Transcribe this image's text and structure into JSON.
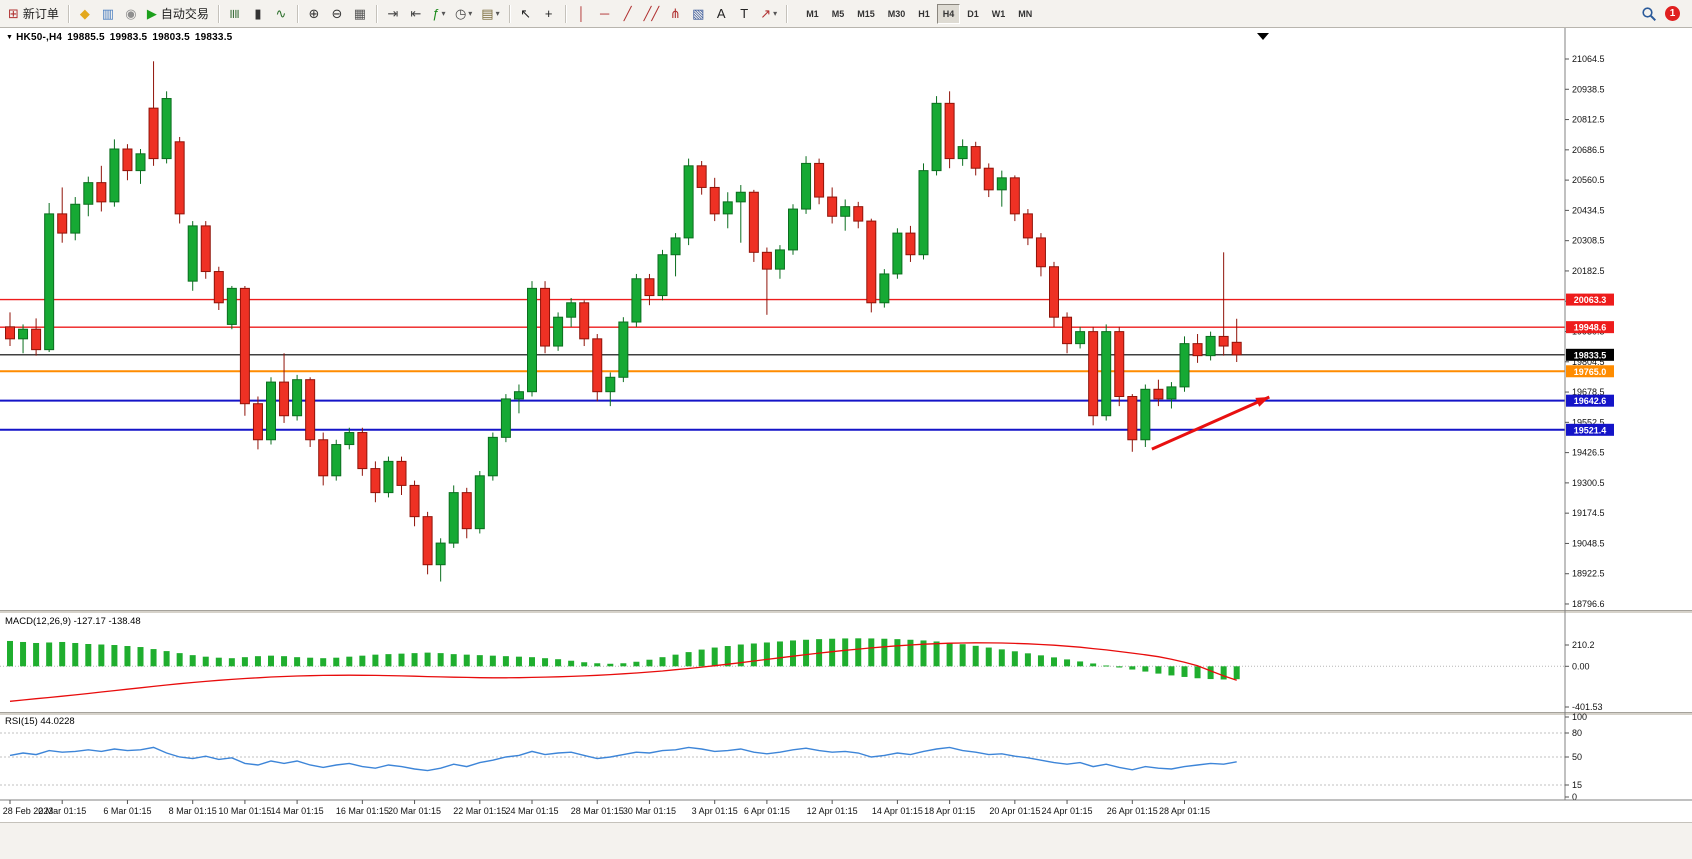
{
  "colors": {
    "candle_up": "#16a934",
    "candle_up_border": "#0b6e1f",
    "candle_down": "#ee3124",
    "candle_down_border": "#901309",
    "macd_histogram": "#1fae2e",
    "macd_signal": "#e80c0c",
    "rsi_line": "#3d85d8",
    "accent_red": "#ee1c1c",
    "accent_blue": "#1414c8",
    "accent_orange": "#ff8c00"
  },
  "toolbar": {
    "buttons": [
      {
        "name": "new-order",
        "glyph": "⊞",
        "color": "#b03030",
        "label": "新订单"
      },
      {
        "type": "sep"
      },
      {
        "name": "mql5-community",
        "glyph": "◆",
        "color": "#e3a81c"
      },
      {
        "name": "charts-gallery",
        "glyph": "▥",
        "color": "#4a7ec0"
      },
      {
        "name": "webinars",
        "glyph": "◉",
        "color": "#8f8f8f"
      },
      {
        "name": "auto-trading",
        "glyph": "▶",
        "color": "#1ca01c",
        "label": "自动交易"
      },
      {
        "type": "sep"
      },
      {
        "name": "bar-chart",
        "glyph": "≣",
        "rotate": true,
        "color": "#3a6e3a"
      },
      {
        "name": "candlestick-chart",
        "glyph": "▮",
        "color": "#333333"
      },
      {
        "name": "line-chart",
        "glyph": "∿",
        "color": "#2a6e2a"
      },
      {
        "type": "sep"
      },
      {
        "name": "zoom-in",
        "glyph": "⊕",
        "color": "#333333"
      },
      {
        "name": "zoom-out",
        "glyph": "⊖",
        "color": "#333333"
      },
      {
        "name": "tile-windows",
        "glyph": "▦",
        "color": "#555555"
      },
      {
        "type": "sep"
      },
      {
        "name": "auto-scroll",
        "glyph": "⇥",
        "color": "#444444"
      },
      {
        "name": "chart-shift",
        "glyph": "⇤",
        "color": "#444444"
      },
      {
        "name": "indicators",
        "glyph": "ƒ",
        "color": "#1a8a1a",
        "dropdown": true
      },
      {
        "name": "periods",
        "glyph": "◷",
        "color": "#444444",
        "dropdown": true
      },
      {
        "name": "templates",
        "glyph": "▤",
        "color": "#7a6a3a",
        "dropdown": true
      },
      {
        "type": "sep"
      },
      {
        "name": "cursor",
        "glyph": "↖",
        "color": "#222222"
      },
      {
        "name": "crosshair",
        "glyph": "+",
        "color": "#222222"
      },
      {
        "type": "sep"
      },
      {
        "name": "vertical-line",
        "glyph": "│",
        "color": "#b03030"
      },
      {
        "name": "horizontal-line",
        "glyph": "─",
        "color": "#b03030"
      },
      {
        "name": "trendline",
        "glyph": "╱",
        "color": "#b03030"
      },
      {
        "name": "equidistant-channel",
        "glyph": "╱╱",
        "color": "#b03030"
      },
      {
        "name": "fibonacci",
        "glyph": "⋔",
        "color": "#b03030"
      },
      {
        "name": "shapes",
        "glyph": "▧",
        "color": "#3a5a9a"
      },
      {
        "name": "text",
        "glyph": "A",
        "color": "#222222"
      },
      {
        "name": "text-label",
        "glyph": "T",
        "color": "#222222"
      },
      {
        "name": "arrows",
        "glyph": "↗",
        "color": "#b03030",
        "dropdown": true
      },
      {
        "type": "sep"
      }
    ],
    "timeframes": [
      "M1",
      "M5",
      "M15",
      "M30",
      "H1",
      "H4",
      "D1",
      "W1",
      "MN"
    ],
    "active_timeframe": "H4",
    "notification_count": "1"
  },
  "header": {
    "collapse_icon": "▼",
    "symbol": "HK50-,H4",
    "open": "19885.5",
    "high": "19983.5",
    "low": "19803.5",
    "close": "19833.5"
  },
  "panels": {
    "macd_label": "MACD(12,26,9) -127.17 -138.48",
    "rsi_label": "RSI(15) 44.0228"
  },
  "chart_data": [
    {
      "type": "candlestick",
      "symbol": "HK50-",
      "timeframe": "H4",
      "title": "HK50-,H4",
      "last_ohlc": {
        "open": 19885.5,
        "high": 19983.5,
        "low": 19803.5,
        "close": 19833.5
      },
      "ylim": [
        18760,
        21190
      ],
      "y_axis_ticks": [
        21064.5,
        20938.5,
        20812.5,
        20686.5,
        20560.5,
        20434.5,
        20308.5,
        20182.5,
        20056.5,
        19930.5,
        19804.5,
        19678.5,
        19552.5,
        19426.5,
        19300.5,
        19174.5,
        19048.5,
        18922.5,
        18796.6
      ],
      "hlines": [
        {
          "price": 20063.3,
          "color": "#ee1c1c",
          "width": 1.4
        },
        {
          "price": 19948.6,
          "color": "#ee1c1c",
          "width": 1.4
        },
        {
          "price": 19833.5,
          "color": "#000000",
          "width": 1.2
        },
        {
          "price": 19765.0,
          "color": "#ff8c00",
          "width": 2
        },
        {
          "price": 19642.6,
          "color": "#1414c8",
          "width": 2
        },
        {
          "price": 19521.4,
          "color": "#1414c8",
          "width": 2
        }
      ],
      "x_labels": [
        [
          "28 Feb 2023",
          0
        ],
        [
          "2 Mar 01:15",
          4
        ],
        [
          "6 Mar 01:15",
          9
        ],
        [
          "8 Mar 01:15",
          14
        ],
        [
          "10 Mar 01:15",
          18
        ],
        [
          "14 Mar 01:15",
          22
        ],
        [
          "16 Mar 01:15",
          27
        ],
        [
          "20 Mar 01:15",
          31
        ],
        [
          "22 Mar 01:15",
          36
        ],
        [
          "24 Mar 01:15",
          40
        ],
        [
          "28 Mar 01:15",
          45
        ],
        [
          "30 Mar 01:15",
          49
        ],
        [
          "3 Apr 01:15",
          54
        ],
        [
          "6 Apr 01:15",
          58
        ],
        [
          "12 Apr 01:15",
          63
        ],
        [
          "14 Apr 01:15",
          68
        ],
        [
          "18 Apr 01:15",
          72
        ],
        [
          "20 Apr 01:15",
          77
        ],
        [
          "24 Apr 01:15",
          81
        ],
        [
          "26 Apr 01:15",
          86
        ],
        [
          "28 Apr 01:15",
          90
        ]
      ],
      "candles": [
        [
          19950,
          20010,
          19870,
          19900
        ],
        [
          19900,
          19960,
          19840,
          19940
        ],
        [
          19940,
          19985,
          19830,
          19855
        ],
        [
          19855,
          20465,
          19845,
          20420
        ],
        [
          20420,
          20530,
          20300,
          20340
        ],
        [
          20340,
          20490,
          20310,
          20460
        ],
        [
          20460,
          20575,
          20410,
          20550
        ],
        [
          20550,
          20620,
          20430,
          20470
        ],
        [
          20470,
          20730,
          20450,
          20690
        ],
        [
          20690,
          20710,
          20560,
          20600
        ],
        [
          20600,
          20690,
          20545,
          20670
        ],
        [
          20860,
          21055,
          20620,
          20650
        ],
        [
          20650,
          20930,
          20630,
          20900
        ],
        [
          20720,
          20740,
          20380,
          20420
        ],
        [
          20140,
          20390,
          20100,
          20370
        ],
        [
          20370,
          20390,
          20150,
          20180
        ],
        [
          20180,
          20200,
          20020,
          20050
        ],
        [
          19960,
          20120,
          19940,
          20110
        ],
        [
          20110,
          20120,
          19580,
          19630
        ],
        [
          19630,
          19660,
          19440,
          19480
        ],
        [
          19480,
          19740,
          19460,
          19720
        ],
        [
          19720,
          19840,
          19550,
          19580
        ],
        [
          19580,
          19750,
          19560,
          19730
        ],
        [
          19730,
          19740,
          19450,
          19480
        ],
        [
          19480,
          19510,
          19290,
          19330
        ],
        [
          19330,
          19480,
          19310,
          19460
        ],
        [
          19460,
          19530,
          19440,
          19510
        ],
        [
          19510,
          19530,
          19330,
          19360
        ],
        [
          19360,
          19390,
          19220,
          19260
        ],
        [
          19260,
          19410,
          19240,
          19390
        ],
        [
          19390,
          19410,
          19250,
          19290
        ],
        [
          19290,
          19310,
          19120,
          19160
        ],
        [
          19160,
          19180,
          18920,
          18960
        ],
        [
          18960,
          19070,
          18890,
          19050
        ],
        [
          19050,
          19290,
          19030,
          19260
        ],
        [
          19260,
          19280,
          19070,
          19110
        ],
        [
          19110,
          19350,
          19090,
          19330
        ],
        [
          19330,
          19510,
          19310,
          19490
        ],
        [
          19490,
          19670,
          19470,
          19650
        ],
        [
          19650,
          19710,
          19590,
          19680
        ],
        [
          19680,
          20140,
          19660,
          20110
        ],
        [
          20110,
          20140,
          19840,
          19870
        ],
        [
          19870,
          20010,
          19850,
          19990
        ],
        [
          19990,
          20070,
          19950,
          20050
        ],
        [
          20050,
          20060,
          19870,
          19900
        ],
        [
          19900,
          19920,
          19640,
          19680
        ],
        [
          19680,
          19760,
          19620,
          19740
        ],
        [
          19740,
          19990,
          19720,
          19970
        ],
        [
          19970,
          20170,
          19950,
          20150
        ],
        [
          20150,
          20170,
          20040,
          20080
        ],
        [
          20080,
          20270,
          20060,
          20250
        ],
        [
          20250,
          20340,
          20160,
          20320
        ],
        [
          20320,
          20650,
          20290,
          20620
        ],
        [
          20620,
          20640,
          20500,
          20530
        ],
        [
          20530,
          20570,
          20390,
          20420
        ],
        [
          20420,
          20510,
          20360,
          20470
        ],
        [
          20470,
          20540,
          20300,
          20510
        ],
        [
          20510,
          20520,
          20220,
          20260
        ],
        [
          20260,
          20280,
          20000,
          20190
        ],
        [
          20190,
          20290,
          20150,
          20270
        ],
        [
          20270,
          20460,
          20250,
          20440
        ],
        [
          20440,
          20660,
          20420,
          20630
        ],
        [
          20630,
          20650,
          20460,
          20490
        ],
        [
          20490,
          20530,
          20380,
          20410
        ],
        [
          20410,
          20480,
          20350,
          20450
        ],
        [
          20450,
          20470,
          20360,
          20390
        ],
        [
          20390,
          20400,
          20010,
          20050
        ],
        [
          20050,
          20190,
          20030,
          20170
        ],
        [
          20170,
          20360,
          20150,
          20340
        ],
        [
          20340,
          20370,
          20220,
          20250
        ],
        [
          20250,
          20630,
          20230,
          20600
        ],
        [
          20600,
          20910,
          20580,
          20880
        ],
        [
          20880,
          20930,
          20610,
          20650
        ],
        [
          20650,
          20730,
          20620,
          20700
        ],
        [
          20700,
          20720,
          20580,
          20610
        ],
        [
          20610,
          20630,
          20490,
          20520
        ],
        [
          20520,
          20600,
          20450,
          20570
        ],
        [
          20570,
          20580,
          20390,
          20420
        ],
        [
          20420,
          20440,
          20290,
          20320
        ],
        [
          20320,
          20340,
          20160,
          20200
        ],
        [
          20200,
          20220,
          19950,
          19990
        ],
        [
          19990,
          20010,
          19840,
          19880
        ],
        [
          19880,
          19950,
          19860,
          19930
        ],
        [
          19930,
          19950,
          19540,
          19580
        ],
        [
          19580,
          19960,
          19560,
          19930
        ],
        [
          19930,
          19950,
          19620,
          19660
        ],
        [
          19660,
          19670,
          19430,
          19480
        ],
        [
          19480,
          19710,
          19450,
          19690
        ],
        [
          19690,
          19730,
          19620,
          19650
        ],
        [
          19650,
          19720,
          19610,
          19700
        ],
        [
          19700,
          19910,
          19680,
          19880
        ],
        [
          19880,
          19920,
          19800,
          19830
        ],
        [
          19830,
          19930,
          19810,
          19910
        ],
        [
          19910,
          20260,
          19830,
          19870
        ],
        [
          19885.5,
          19983.5,
          19803.5,
          19833.5
        ]
      ],
      "annotation_arrow": {
        "from": {
          "candle": 87.5,
          "price": 19441
        },
        "to": {
          "candle": 96.5,
          "price": 19658
        },
        "color": "#e81010"
      }
    },
    {
      "type": "bar",
      "name": "MACD",
      "label": "MACD(12,26,9) -127.17 -138.48",
      "params": [
        12,
        26,
        9
      ],
      "current": {
        "macd": -127.17,
        "signal": -138.48
      },
      "levels": [
        {
          "v": 210.2,
          "label": "210.2"
        },
        {
          "v": 0,
          "label": "0.00"
        },
        {
          "v": -401.53,
          "label": "-401.53"
        }
      ],
      "histogram": [
        250,
        240,
        230,
        235,
        240,
        230,
        220,
        215,
        210,
        200,
        190,
        170,
        150,
        130,
        110,
        95,
        85,
        80,
        90,
        100,
        105,
        100,
        90,
        85,
        80,
        85,
        95,
        105,
        115,
        120,
        125,
        130,
        135,
        130,
        120,
        115,
        110,
        105,
        100,
        95,
        90,
        80,
        70,
        55,
        40,
        30,
        25,
        30,
        45,
        65,
        90,
        115,
        140,
        165,
        185,
        200,
        215,
        225,
        235,
        245,
        255,
        262,
        268,
        272,
        275,
        276,
        275,
        272,
        268,
        262,
        255,
        245,
        232,
        218,
        202,
        185,
        167,
        148,
        128,
        108,
        88,
        68,
        48,
        28,
        8,
        -12,
        -32,
        -52,
        -72,
        -90,
        -105,
        -118,
        -126,
        -130,
        -127
      ],
      "signal": [
        -345,
        -333,
        -320,
        -308,
        -295,
        -282,
        -268,
        -254,
        -240,
        -226,
        -212,
        -198,
        -185,
        -172,
        -160,
        -149,
        -138,
        -129,
        -120,
        -113,
        -106,
        -101,
        -96,
        -93,
        -90,
        -89,
        -88,
        -89,
        -90,
        -92,
        -95,
        -98,
        -102,
        -105,
        -108,
        -110,
        -112,
        -113,
        -113,
        -112,
        -110,
        -107,
        -104,
        -100,
        -95,
        -89,
        -82,
        -74,
        -66,
        -56,
        -46,
        -34,
        -22,
        -8,
        6,
        21,
        36,
        52,
        68,
        84,
        100,
        115,
        130,
        144,
        158,
        170,
        182,
        192,
        202,
        210,
        218,
        223,
        228,
        230,
        232,
        231,
        230,
        226,
        222,
        215,
        208,
        198,
        188,
        175,
        162,
        146,
        130,
        113,
        95,
        70,
        40,
        5,
        -45,
        -95,
        -138
      ]
    },
    {
      "type": "line",
      "name": "RSI",
      "label": "RSI(15) 44.0228",
      "params": [
        15
      ],
      "current": 44.0228,
      "levels": [
        {
          "v": 100,
          "label": "100"
        },
        {
          "v": 80,
          "label": "80"
        },
        {
          "v": 50,
          "label": "50"
        },
        {
          "v": 15,
          "label": "15"
        },
        {
          "v": 0,
          "label": "0"
        }
      ],
      "values": [
        52,
        55,
        53,
        58,
        56,
        57,
        59,
        57,
        60,
        58,
        59,
        62,
        55,
        50,
        48,
        51,
        47,
        49,
        42,
        40,
        45,
        42,
        45,
        40,
        37,
        40,
        42,
        38,
        36,
        40,
        38,
        35,
        33,
        36,
        41,
        38,
        43,
        46,
        50,
        52,
        57,
        53,
        55,
        56,
        52,
        48,
        50,
        53,
        56,
        55,
        58,
        59,
        62,
        60,
        57,
        58,
        60,
        56,
        54,
        56,
        59,
        61,
        58,
        56,
        57,
        55,
        50,
        52,
        55,
        53,
        57,
        60,
        62,
        58,
        56,
        53,
        54,
        51,
        49,
        46,
        43,
        41,
        43,
        38,
        41,
        37,
        34,
        38,
        36,
        35,
        38,
        40,
        42,
        41,
        44
      ]
    }
  ]
}
